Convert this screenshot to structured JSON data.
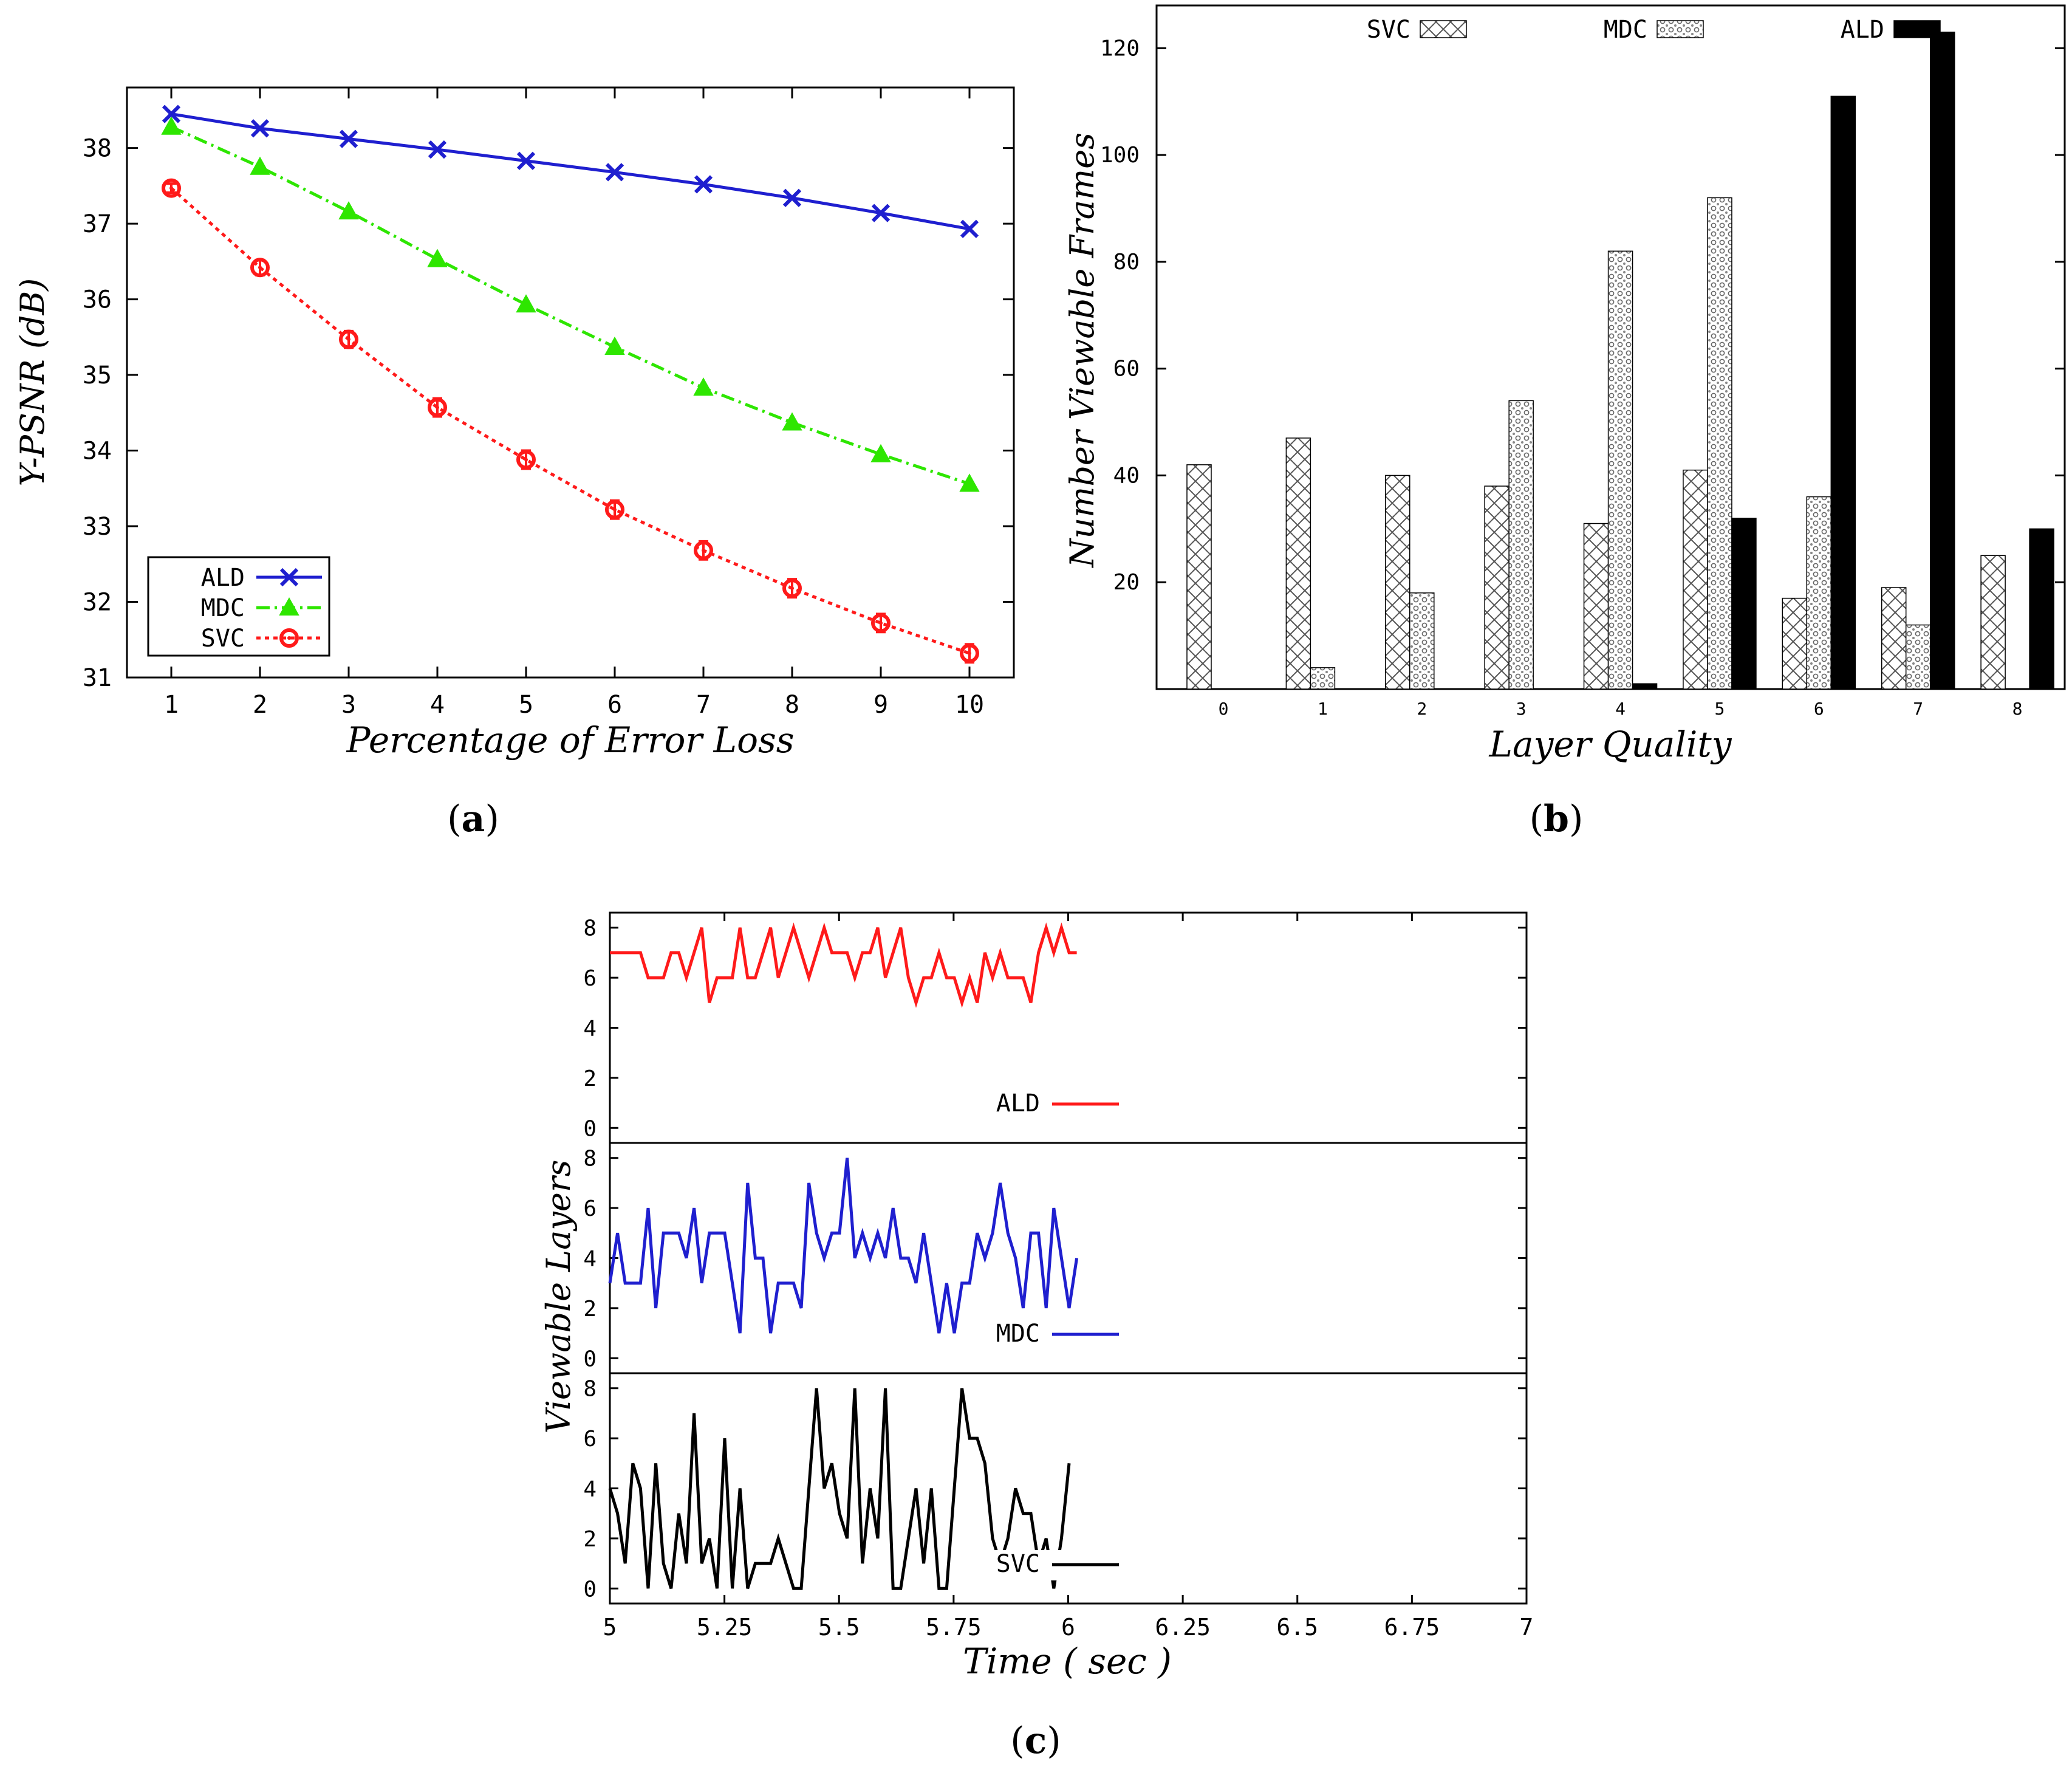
{
  "chart_data": [
    {
      "id": "a",
      "type": "line",
      "panel_label": "(a)",
      "panel_letter": "a",
      "xlabel": "Percentage of Error Loss",
      "ylabel": "Y-PSNR (dB)",
      "x": [
        1,
        2,
        3,
        4,
        5,
        6,
        7,
        8,
        9,
        10
      ],
      "xlim": [
        0.5,
        10.5
      ],
      "ylim": [
        31,
        38.8
      ],
      "xticks": [
        1,
        2,
        3,
        4,
        5,
        6,
        7,
        8,
        9,
        10
      ],
      "yticks": [
        31,
        32,
        33,
        34,
        35,
        36,
        37,
        38
      ],
      "legend_position": "bottom-left",
      "series": [
        {
          "name": "ALD",
          "color": "#1f1fcf",
          "marker": "x",
          "dash": "",
          "values": [
            38.45,
            38.26,
            38.12,
            37.98,
            37.83,
            37.68,
            37.52,
            37.34,
            37.14,
            36.93
          ]
        },
        {
          "name": "MDC",
          "color": "#2ee600",
          "marker": "triangle",
          "dash": "dashdot",
          "values": [
            38.28,
            37.75,
            37.16,
            36.53,
            35.93,
            35.37,
            34.83,
            34.37,
            33.95,
            33.56
          ]
        },
        {
          "name": "SVC",
          "color": "#ff1a1a",
          "marker": "circle",
          "dash": "dot",
          "values": [
            37.47,
            36.42,
            35.47,
            34.57,
            33.88,
            33.22,
            32.68,
            32.18,
            31.72,
            31.32
          ],
          "error": [
            0.06,
            0.1,
            0.11,
            0.12,
            0.12,
            0.12,
            0.12,
            0.12,
            0.12,
            0.12
          ]
        }
      ]
    },
    {
      "id": "b",
      "type": "bar",
      "panel_label": "(b)",
      "panel_letter": "b",
      "xlabel": "Layer Quality",
      "ylabel": "Number Viewable Frames",
      "categories": [
        "0",
        "1",
        "2",
        "3",
        "4",
        "5",
        "6",
        "7",
        "8"
      ],
      "ylim": [
        0,
        128
      ],
      "yticks": [
        20,
        40,
        60,
        80,
        100,
        120
      ],
      "legend_position": "top",
      "series": [
        {
          "name": "SVC",
          "pattern": "crosshatch",
          "values": [
            42,
            47,
            40,
            38,
            31,
            41,
            17,
            19,
            25
          ]
        },
        {
          "name": "MDC",
          "pattern": "dotted",
          "values": [
            0,
            4,
            18,
            54,
            82,
            92,
            36,
            12,
            0
          ]
        },
        {
          "name": "ALD",
          "pattern": "solid",
          "values": [
            0,
            0,
            0,
            0,
            1,
            32,
            111,
            123,
            30
          ]
        }
      ]
    },
    {
      "id": "c",
      "type": "line",
      "panel_label": "(c)",
      "panel_letter": "c",
      "xlabel": "Time ( sec )",
      "ylabel": "Viewable Layers",
      "xlim": [
        5,
        7
      ],
      "xticks": [
        "5",
        "5.25",
        "5.5",
        "5.75",
        "6",
        "6.25",
        "6.5",
        "6.75",
        "7"
      ],
      "ylim": [
        -0.6,
        8.6
      ],
      "yticks": [
        0,
        2,
        4,
        6,
        8
      ],
      "dt": 0.0167,
      "series": [
        {
          "name": "ALD",
          "color": "#ff1a1a",
          "values": [
            7,
            7,
            7,
            7,
            7,
            6,
            6,
            6,
            7,
            7,
            6,
            7,
            8,
            5,
            6,
            6,
            6,
            8,
            6,
            6,
            7,
            8,
            6,
            7,
            8,
            7,
            6,
            7,
            8,
            7,
            7,
            7,
            6,
            7,
            7,
            8,
            6,
            7,
            8,
            6,
            5,
            6,
            6,
            7,
            6,
            6,
            5,
            6,
            5,
            7,
            6,
            7,
            6,
            6,
            6,
            5,
            7,
            8,
            7,
            8,
            7,
            7
          ]
        },
        {
          "name": "MDC",
          "color": "#1f1fcf",
          "values": [
            3,
            5,
            3,
            3,
            3,
            6,
            2,
            5,
            5,
            5,
            4,
            6,
            3,
            5,
            5,
            5,
            3,
            1,
            7,
            4,
            4,
            1,
            3,
            3,
            3,
            2,
            7,
            5,
            4,
            5,
            5,
            8,
            4,
            5,
            4,
            5,
            4,
            6,
            4,
            4,
            3,
            5,
            3,
            1,
            3,
            1,
            3,
            3,
            5,
            4,
            5,
            7,
            5,
            4,
            2,
            5,
            5,
            2,
            6,
            4,
            2,
            4
          ]
        },
        {
          "name": "SVC",
          "color": "#000000",
          "values": [
            4,
            3,
            1,
            5,
            4,
            0,
            5,
            1,
            0,
            3,
            1,
            7,
            1,
            2,
            0,
            6,
            0,
            4,
            0,
            1,
            1,
            1,
            2,
            1,
            0,
            0,
            4,
            8,
            4,
            5,
            3,
            2,
            8,
            1,
            4,
            2,
            8,
            0,
            0,
            2,
            4,
            1,
            4,
            0,
            0,
            4,
            8,
            6,
            6,
            5,
            2,
            1,
            2,
            4,
            3,
            3,
            1,
            2,
            0,
            2,
            5
          ]
        }
      ]
    }
  ]
}
